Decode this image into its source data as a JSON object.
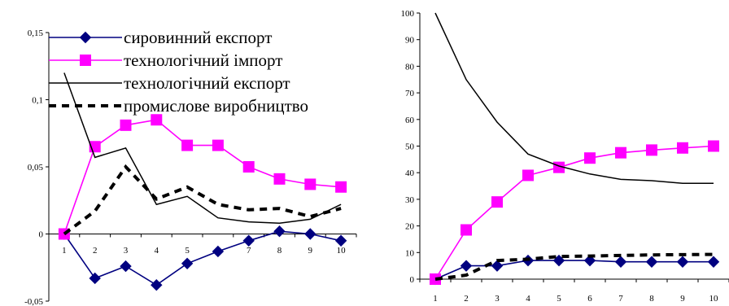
{
  "chart_data": [
    {
      "type": "line",
      "x": [
        1,
        2,
        3,
        4,
        5,
        6,
        7,
        8,
        9,
        10
      ],
      "xticks": [
        "1",
        "2",
        "3",
        "4",
        "5",
        "6",
        "7",
        "8",
        "9",
        "10"
      ],
      "yticks": [
        "-0,05",
        "0",
        "0,05",
        "0,1",
        "0,15"
      ],
      "ylim": [
        -0.05,
        0.15
      ],
      "grid": false,
      "legend_position": "top-right",
      "series": [
        {
          "name": "сировинний експорт",
          "color": "#000080",
          "marker": "diamond",
          "line_style": "solid",
          "values": [
            0.0,
            -0.033,
            -0.024,
            -0.038,
            -0.022,
            -0.013,
            -0.005,
            0.002,
            0.0,
            -0.005
          ]
        },
        {
          "name": "технологічний імпорт",
          "color": "#ff00ff",
          "marker": "square",
          "line_style": "solid",
          "values": [
            0.0,
            0.065,
            0.081,
            0.085,
            0.066,
            0.066,
            0.05,
            0.041,
            0.037,
            0.035
          ]
        },
        {
          "name": "технологічний  експорт",
          "color": "#000000",
          "marker": "none",
          "line_style": "solid",
          "values": [
            0.12,
            0.057,
            0.064,
            0.022,
            0.028,
            0.012,
            0.009,
            0.008,
            0.011,
            0.022
          ]
        },
        {
          "name": "промислове виробництво",
          "color": "#000000",
          "marker": "none",
          "line_style": "dashed",
          "values": [
            0.0,
            0.017,
            0.05,
            0.026,
            0.035,
            0.022,
            0.018,
            0.019,
            0.013,
            0.019
          ]
        }
      ]
    },
    {
      "type": "line",
      "x": [
        1,
        2,
        3,
        4,
        5,
        6,
        7,
        8,
        9,
        10
      ],
      "xticks": [
        "1",
        "2",
        "3",
        "4",
        "5",
        "6",
        "7",
        "8",
        "9",
        "10"
      ],
      "yticks": [
        "0",
        "10",
        "20",
        "30",
        "40",
        "50",
        "60",
        "70",
        "80",
        "90",
        "100"
      ],
      "ylim": [
        0,
        100
      ],
      "grid": false,
      "series": [
        {
          "color": "#000080",
          "marker": "diamond",
          "line_style": "solid",
          "values": [
            0,
            5,
            5,
            7,
            7,
            7,
            6.5,
            6.5,
            6.5,
            6.5
          ]
        },
        {
          "color": "#ff00ff",
          "marker": "square",
          "line_style": "solid",
          "values": [
            0,
            18.5,
            29,
            39,
            42,
            45.5,
            47.5,
            48.5,
            49.3,
            50
          ]
        },
        {
          "color": "#000000",
          "marker": "none",
          "line_style": "solid",
          "values": [
            100,
            75,
            59,
            47,
            42.5,
            39.5,
            37.5,
            37,
            36,
            36
          ]
        },
        {
          "color": "#000000",
          "marker": "none",
          "line_style": "dashed",
          "values": [
            0,
            1.5,
            7,
            7.5,
            8.5,
            8.7,
            8.9,
            9.1,
            9.2,
            9.3
          ]
        }
      ]
    }
  ]
}
